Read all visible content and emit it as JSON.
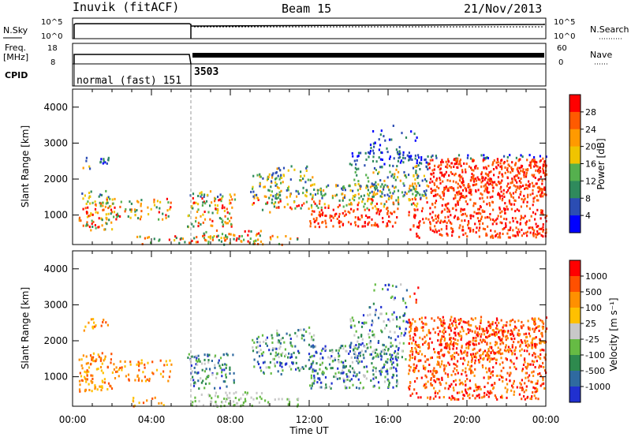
{
  "header": {
    "station": "Inuvik (fitACF)",
    "beam": "Beam 15",
    "date": "21/Nov/2013"
  },
  "aux": {
    "nsky_label": "N.Sky",
    "nsearch_label": "N.Search",
    "freq_label": "Freq.",
    "mhz_label": "[MHz]",
    "nave_label": "Nave",
    "cpid_label": "CPID",
    "nsky_ticks": [
      "10^5",
      "10^0"
    ],
    "nsearch_ticks": [
      "10^5",
      "10^0"
    ],
    "freq_ticks": [
      "18",
      "8"
    ],
    "nave_ticks": [
      "60",
      "0"
    ],
    "cpid_segments": [
      {
        "start": "00:00",
        "label": "normal (fast) 151"
      },
      {
        "start": "06:00",
        "label": "3503"
      }
    ]
  },
  "chart_data": [
    {
      "type": "heatmap",
      "title": "",
      "xlabel": "",
      "ylabel": "Slant Range [km]",
      "xlim": [
        0,
        24
      ],
      "ylim": [
        180,
        4500
      ],
      "yticks": [
        "1000",
        "2000",
        "3000",
        "4000"
      ],
      "colorbar": {
        "label": "Power [dB]",
        "ticks": [
          "4",
          "8",
          "12",
          "16",
          "20",
          "24",
          "28"
        ],
        "colors": [
          "#0000ff",
          "#2b4db3",
          "#2f8a5c",
          "#55b04e",
          "#f0c400",
          "#ff9a00",
          "#ff5a00",
          "#ff0000"
        ]
      }
    },
    {
      "type": "heatmap",
      "title": "",
      "xlabel": "Time UT",
      "ylabel": "Slant Range [km]",
      "xlim": [
        0,
        24
      ],
      "ylim": [
        180,
        4500
      ],
      "xticks": [
        "00:00",
        "04:00",
        "08:00",
        "12:00",
        "16:00",
        "20:00",
        "00:00"
      ],
      "yticks": [
        "1000",
        "2000",
        "3000",
        "4000"
      ],
      "colorbar": {
        "label": "Velocity [m s⁻¹]",
        "ticks": [
          "1000",
          "500",
          "100",
          "25",
          "-25",
          "-100",
          "-500",
          "-1000"
        ],
        "colors": [
          "#2030d0",
          "#2f6aa0",
          "#2e8a4e",
          "#66bb44",
          "#c8c8c8",
          "#ffc000",
          "#ff9000",
          "#ff5000",
          "#ff0000"
        ]
      }
    }
  ]
}
